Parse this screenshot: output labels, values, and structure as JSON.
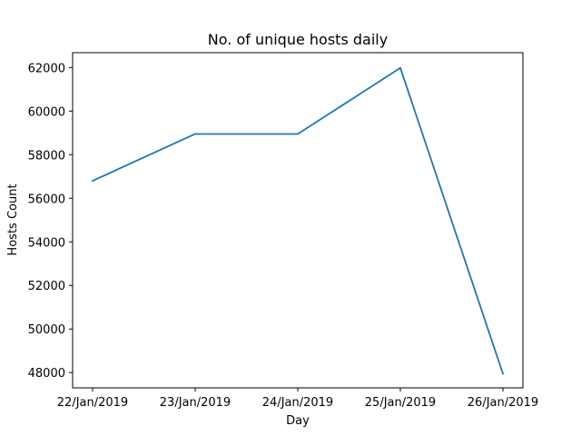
{
  "chart_data": {
    "type": "line",
    "title": "No. of unique hosts daily",
    "xlabel": "Day",
    "ylabel": "Hosts Count",
    "categories": [
      "22/Jan/2019",
      "23/Jan/2019",
      "24/Jan/2019",
      "25/Jan/2019",
      "26/Jan/2019"
    ],
    "series": [
      {
        "values": [
          56800,
          58950,
          58950,
          61980,
          47950
        ],
        "color": "#1f77b4"
      }
    ],
    "yticks": [
      48000,
      50000,
      52000,
      54000,
      56000,
      58000,
      60000,
      62000
    ],
    "ylim": [
      47300,
      62680
    ],
    "grid": false,
    "legend": "none"
  }
}
